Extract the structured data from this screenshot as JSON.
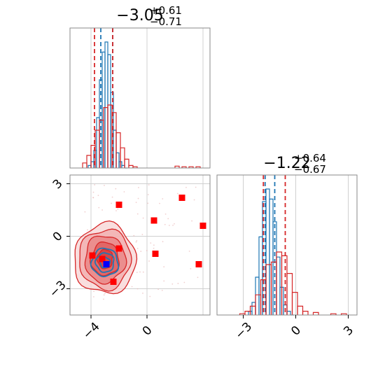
{
  "chart_data": [
    {
      "panel": "marginal-param-1",
      "type": "histogram",
      "title": "-3.05 (+0.61 / -0.71)",
      "title_main": "−3.05",
      "title_sup": "+0.61",
      "title_sub": "−0.71",
      "xlim": [
        -5.5,
        4.5
      ],
      "grid_x": [
        -4,
        0,
        4
      ],
      "series": [
        {
          "color": "#1f77b4",
          "quantile_lines": [
            -3.3,
            -2.45
          ],
          "bins": [
            -4.2,
            -4.0,
            -3.8,
            -3.6,
            -3.4,
            -3.2,
            -3.0,
            -2.8,
            -2.6,
            -2.4,
            -2.2,
            -2.0,
            -1.8,
            -1.6
          ],
          "values": [
            0.02,
            0.05,
            0.14,
            0.4,
            0.7,
            0.92,
            1.0,
            0.9,
            0.6,
            0.3,
            0.12,
            0.05,
            0.02,
            0.0
          ]
        },
        {
          "color": "#d62728",
          "quantile_lines": [
            -3.75,
            -2.45
          ],
          "bins": [
            -4.6,
            -4.3,
            -4.0,
            -3.7,
            -3.4,
            -3.1,
            -2.8,
            -2.5,
            -2.2,
            -1.9,
            -1.6,
            -1.3,
            -1.0,
            2.0,
            2.5,
            3.0,
            3.5
          ],
          "values": [
            0.04,
            0.1,
            0.18,
            0.3,
            0.38,
            0.48,
            0.5,
            0.44,
            0.28,
            0.16,
            0.07,
            0.02,
            0.01,
            0.015,
            0.01,
            0.01,
            0.01
          ]
        }
      ]
    },
    {
      "panel": "joint-param-1-param-2",
      "type": "contour+scatter",
      "xlim": [
        -5.5,
        4.5
      ],
      "ylim": [
        -4.5,
        3.5
      ],
      "xticks": [
        "−4",
        "0"
      ],
      "xtick_values": [
        -4,
        0
      ],
      "yticks": [
        "3",
        "0",
        "−3"
      ],
      "ytick_values": [
        3,
        0,
        -3
      ],
      "grid_x": [
        -4,
        0,
        4
      ],
      "grid_y": [
        3,
        0,
        -3
      ],
      "red_contours": {
        "color": "#d62728",
        "center": [
          -3.0,
          -1.3
        ],
        "radii_x": [
          2.2,
          1.85,
          1.45,
          1.0,
          0.55
        ],
        "radii_y": [
          2.0,
          1.7,
          1.35,
          0.95,
          0.55
        ]
      },
      "blue_contours": {
        "color": "#1f77b4",
        "center": [
          -3.0,
          -1.5
        ],
        "radii_x": [
          0.95,
          0.65,
          0.35
        ],
        "radii_y": [
          0.8,
          0.55,
          0.3
        ]
      },
      "red_points": [
        [
          -2.0,
          1.8
        ],
        [
          0.5,
          0.9
        ],
        [
          2.5,
          2.2
        ],
        [
          4.0,
          0.6
        ],
        [
          -2.0,
          -0.7
        ],
        [
          0.6,
          -1.0
        ],
        [
          3.7,
          -1.6
        ],
        [
          -3.9,
          -1.1
        ],
        [
          -2.4,
          -2.6
        ],
        [
          -3.2,
          -1.3
        ]
      ],
      "blue_point": [
        -2.9,
        -1.6
      ],
      "faint_scatter_extent": {
        "x": [
          -4.5,
          4.0
        ],
        "y": [
          -3.6,
          3.0
        ]
      }
    },
    {
      "panel": "marginal-param-2",
      "type": "histogram",
      "title": "-1.22 (+0.64 / -0.67)",
      "title_main": "−1.22",
      "title_sup": "+0.64",
      "title_sub": "−0.67",
      "xlim": [
        -4.5,
        3.5
      ],
      "xticks": [
        "−3",
        "0",
        "3"
      ],
      "xtick_values": [
        -3,
        0,
        3
      ],
      "grid_x": [
        -3,
        0,
        3
      ],
      "series": [
        {
          "color": "#1f77b4",
          "quantile_lines": [
            -1.75,
            -1.2
          ],
          "bins": [
            -2.7,
            -2.5,
            -2.3,
            -2.1,
            -1.9,
            -1.7,
            -1.5,
            -1.3,
            -1.1,
            -0.9,
            -0.7,
            -0.5,
            -0.3
          ],
          "values": [
            0.03,
            0.1,
            0.3,
            0.62,
            0.9,
            1.0,
            0.92,
            0.74,
            0.46,
            0.22,
            0.08,
            0.03,
            0.0
          ]
        },
        {
          "color": "#d62728",
          "quantile_lines": [
            -1.85,
            -0.6
          ],
          "bins": [
            -3.2,
            -2.9,
            -2.6,
            -2.3,
            -2.0,
            -1.7,
            -1.4,
            -1.1,
            -0.8,
            -0.5,
            -0.2,
            0.1,
            0.4,
            1.0,
            2.0,
            2.6
          ],
          "values": [
            0.01,
            0.03,
            0.07,
            0.16,
            0.28,
            0.4,
            0.42,
            0.5,
            0.47,
            0.33,
            0.18,
            0.07,
            0.03,
            0.02,
            0.01,
            0.01
          ]
        }
      ]
    }
  ]
}
